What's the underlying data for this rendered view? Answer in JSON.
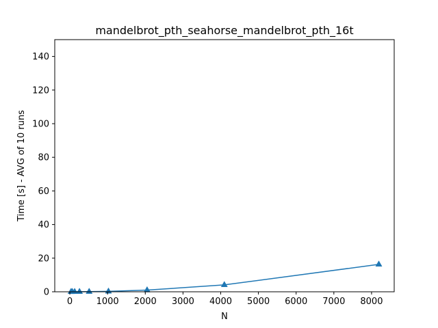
{
  "chart_data": {
    "type": "line",
    "title": "mandelbrot_pth_seahorse_mandelbrot_pth_16t",
    "xlabel": "N",
    "ylabel": "Time [s] - AVG of 10 runs",
    "xlim": [
      -400,
      8600
    ],
    "ylim": [
      0,
      150
    ],
    "xticks": [
      0,
      1000,
      2000,
      3000,
      4000,
      5000,
      6000,
      7000,
      8000
    ],
    "yticks": [
      0,
      20,
      40,
      60,
      80,
      100,
      120,
      140
    ],
    "grid": false,
    "series": [
      {
        "marker": "triangle",
        "color": "#1f77b4",
        "x": [
          32,
          64,
          128,
          256,
          512,
          1024,
          2048,
          4096,
          8192
        ],
        "y": [
          0.02,
          0.02,
          0.03,
          0.05,
          0.09,
          0.25,
          1.0,
          4.1,
          16.3
        ]
      }
    ]
  }
}
